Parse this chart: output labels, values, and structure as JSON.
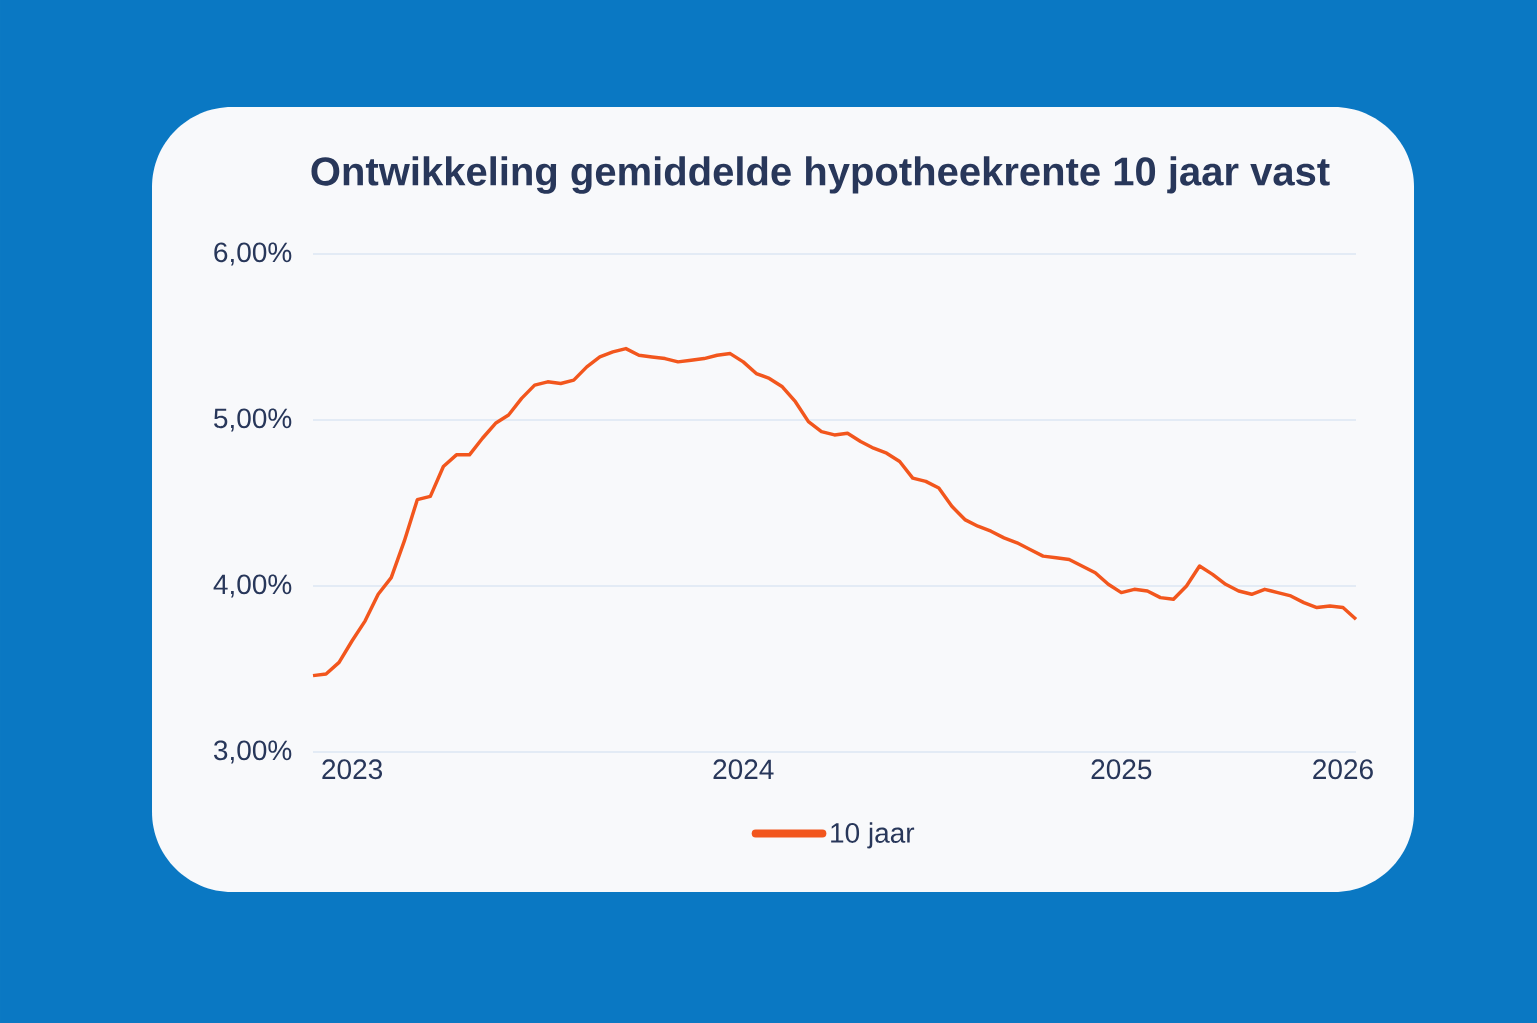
{
  "chart_data": {
    "type": "line",
    "title": "Ontwikkeling gemiddelde hypotheekrente 10 jaar vast",
    "categories": [
      null,
      null,
      null,
      "2023",
      null,
      null,
      null,
      null,
      null,
      null,
      null,
      null,
      null,
      null,
      null,
      null,
      null,
      null,
      null,
      null,
      null,
      null,
      null,
      null,
      null,
      null,
      null,
      null,
      null,
      null,
      null,
      null,
      null,
      "2024",
      null,
      null,
      null,
      null,
      null,
      null,
      null,
      null,
      null,
      null,
      null,
      null,
      null,
      null,
      null,
      null,
      null,
      null,
      null,
      null,
      null,
      null,
      null,
      null,
      null,
      null,
      null,
      null,
      "2025",
      null,
      null,
      null,
      null,
      null,
      null,
      null,
      null,
      null,
      null,
      null,
      null,
      null,
      null,
      null,
      null,
      "2026",
      null
    ],
    "series": [
      {
        "name": "10 jaar",
        "color": "#f2561d",
        "values": [
          3.46,
          3.47,
          3.54,
          3.67,
          3.79,
          3.95,
          4.05,
          4.27,
          4.52,
          4.54,
          4.72,
          4.79,
          4.79,
          4.89,
          4.98,
          5.03,
          5.13,
          5.21,
          5.23,
          5.22,
          5.24,
          5.32,
          5.38,
          5.41,
          5.43,
          5.39,
          5.38,
          5.37,
          5.35,
          5.36,
          5.37,
          5.39,
          5.4,
          5.35,
          5.28,
          5.25,
          5.2,
          5.11,
          4.99,
          4.93,
          4.91,
          4.92,
          4.87,
          4.83,
          4.8,
          4.75,
          4.65,
          4.63,
          4.59,
          4.48,
          4.4,
          4.36,
          4.33,
          4.29,
          4.26,
          4.22,
          4.18,
          4.17,
          4.16,
          4.12,
          4.08,
          4.01,
          3.96,
          3.98,
          3.97,
          3.93,
          3.92,
          4.0,
          4.12,
          4.07,
          4.01,
          3.97,
          3.95,
          3.98,
          3.96,
          3.94,
          3.9,
          3.87,
          3.88,
          3.87,
          3.8
        ]
      }
    ],
    "ylim": [
      3,
      6
    ],
    "yticks": [
      {
        "value": 3,
        "label": "3,00%"
      },
      {
        "value": 4,
        "label": "4,00%"
      },
      {
        "value": 5,
        "label": "5,00%"
      },
      {
        "value": 6,
        "label": "6,00%"
      }
    ],
    "grid": "y",
    "legend": "bottom",
    "marker": "none",
    "line_style": "solid"
  }
}
